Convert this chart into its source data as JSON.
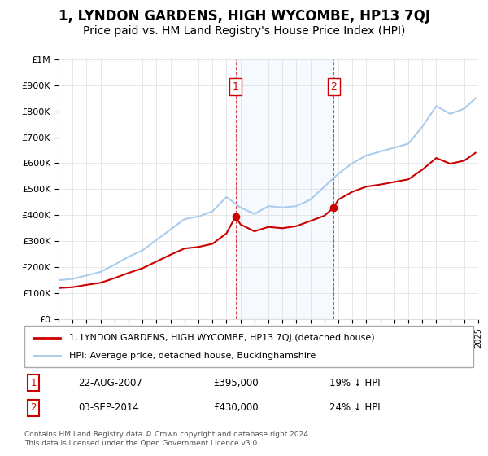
{
  "title": "1, LYNDON GARDENS, HIGH WYCOMBE, HP13 7QJ",
  "subtitle": "Price paid vs. HM Land Registry's House Price Index (HPI)",
  "title_fontsize": 12,
  "subtitle_fontsize": 10,
  "hpi_color": "#aaccee",
  "price_color": "#cc0000",
  "background_color": "#ffffff",
  "grid_color": "#dddddd",
  "highlight_fill": "#ddeeff",
  "ylim": [
    0,
    1000000
  ],
  "yticks": [
    0,
    100000,
    200000,
    300000,
    400000,
    500000,
    600000,
    700000,
    800000,
    900000,
    1000000
  ],
  "ytick_labels": [
    "£0",
    "£100K",
    "£200K",
    "£300K",
    "£400K",
    "£500K",
    "£600K",
    "£700K",
    "£800K",
    "£900K",
    "£1M"
  ],
  "sale1_year": 2007.65,
  "sale1_price": 395000,
  "sale1_label": "1",
  "sale2_year": 2014.67,
  "sale2_price": 430000,
  "sale2_label": "2",
  "annotation1_date": "22-AUG-2007",
  "annotation1_price": "£395,000",
  "annotation1_note": "19% ↓ HPI",
  "annotation2_date": "03-SEP-2014",
  "annotation2_price": "£430,000",
  "annotation2_note": "24% ↓ HPI",
  "legend_line1": "1, LYNDON GARDENS, HIGH WYCOMBE, HP13 7QJ (detached house)",
  "legend_line2": "HPI: Average price, detached house, Buckinghamshire",
  "footer": "Contains HM Land Registry data © Crown copyright and database right 2024.\nThis data is licensed under the Open Government Licence v3.0.",
  "xmin": 1995,
  "xmax": 2025
}
